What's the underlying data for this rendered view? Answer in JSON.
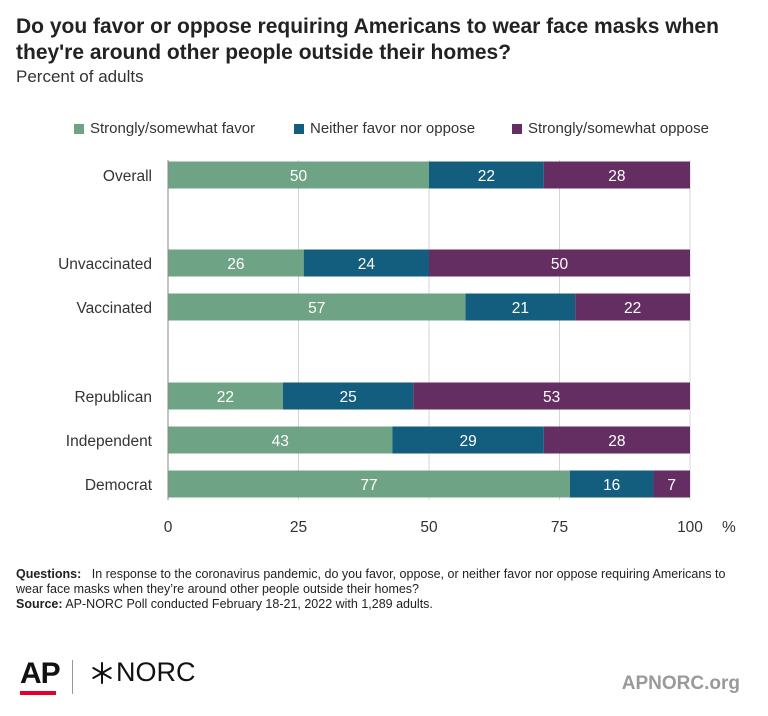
{
  "chart_data": {
    "type": "bar",
    "orientation": "horizontal",
    "stacked": true,
    "title": "Do you favor or oppose requiring Americans to wear face masks when they're around other people outside their homes?",
    "subtitle": "Percent of adults",
    "categories": [
      "Overall",
      "Unvaccinated",
      "Vaccinated",
      "Republican",
      "Independent",
      "Democrat"
    ],
    "series": [
      {
        "name": "Strongly/somewhat favor",
        "color": "#6fa386",
        "values": [
          50,
          26,
          57,
          22,
          43,
          77
        ]
      },
      {
        "name": "Neither favor nor oppose",
        "color": "#135e7e",
        "values": [
          22,
          24,
          21,
          25,
          29,
          16
        ]
      },
      {
        "name": "Strongly/somewhat oppose",
        "color": "#652e62",
        "values": [
          28,
          50,
          22,
          53,
          28,
          7
        ]
      }
    ],
    "xlim": [
      0,
      100
    ],
    "xticks": [
      0,
      25,
      50,
      75,
      100
    ],
    "x_unit": "%",
    "grid": true,
    "legend_position": "top"
  },
  "notes": {
    "questions_label": "Questions:",
    "questions_text": "In response to the coronavirus pandemic, do you favor, oppose, or neither favor nor oppose requiring Americans to wear face masks when they’re around other people outside their homes?",
    "source_label": "Source:",
    "source_text": "AP-NORC Poll conducted February 18-21, 2022 with 1,289 adults."
  },
  "footer": {
    "ap_logo": "AP",
    "norc_logo": "NORC",
    "site": "APNORC.org"
  }
}
